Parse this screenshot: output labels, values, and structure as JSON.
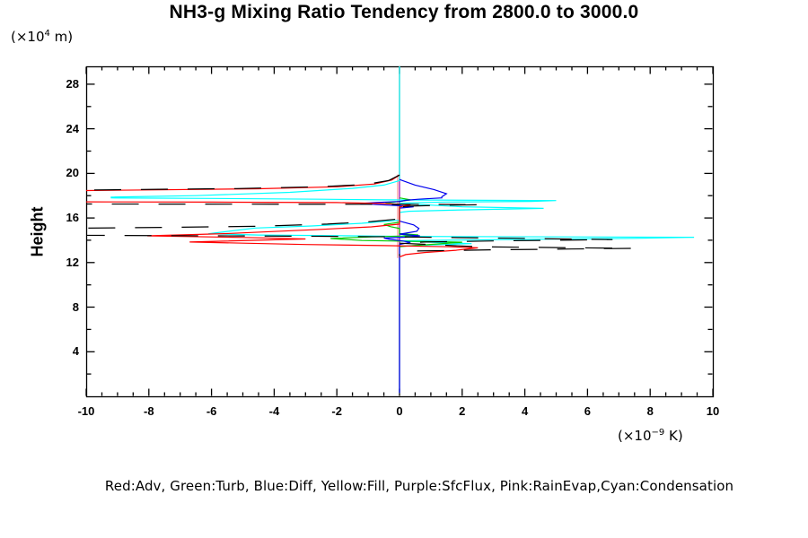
{
  "title": "NH3-g Mixing Ratio Tendency from 2800.0 to 3000.0",
  "y_axis_label": "Height",
  "y_unit": {
    "prefix": "(×10",
    "exp": "4",
    "suffix": " m)"
  },
  "x_unit": {
    "prefix": "(×10",
    "exp": "−9",
    "suffix": " K)"
  },
  "legend_text": "Red:Adv, Green:Turb, Blue:Diff, Yellow:Fill, Purple:SfcFlux, Pink:RainEvap,Cyan:Condensation",
  "colors": {
    "red": "#ff0000",
    "green": "#00cc00",
    "blue": "#0000ee",
    "yellow": "#ffff00",
    "purple": "#9900cc",
    "pink": "#ff9999",
    "cyan": "#00ffff",
    "black": "#000000",
    "axis": "#000000",
    "background": "#ffffff"
  },
  "chart_data": {
    "type": "line",
    "title": "NH3-g Mixing Ratio Tendency from 2800.0 to 3000.0",
    "xlabel": "(×10⁻⁹ K)",
    "ylabel": "Height (×10⁴ m)",
    "xlim": [
      -10,
      10
    ],
    "ylim": [
      0,
      29.6
    ],
    "grid": false,
    "legend_position": "bottom-text-line",
    "x_tick_labels": [
      "-10",
      "-8",
      "-6",
      "-4",
      "-2",
      "0",
      "2",
      "4",
      "6",
      "8",
      "10"
    ],
    "x_tick_values": [
      -10,
      -8,
      -6,
      -4,
      -2,
      0,
      2,
      4,
      6,
      8,
      10
    ],
    "x_minor_step": 0.5,
    "y_tick_labels": [
      "28",
      "24",
      "20",
      "16",
      "12",
      "8",
      "4"
    ],
    "y_tick_values": [
      28,
      24,
      20,
      16,
      12,
      8,
      4
    ],
    "y_minor_step": 2,
    "series": [
      {
        "name": "Fill",
        "color_key": "yellow",
        "dash": "",
        "points": [
          [
            0,
            29.6
          ],
          [
            0,
            0.3
          ]
        ]
      },
      {
        "name": "SfcFlux",
        "color_key": "purple",
        "dash": "",
        "points": [
          [
            0,
            29.6
          ],
          [
            0,
            0.3
          ]
        ]
      },
      {
        "name": "RainEvap",
        "color_key": "pink",
        "dash": "",
        "points": [
          [
            -0.06,
            19.9
          ],
          [
            -0.06,
            12.4
          ]
        ]
      },
      {
        "name": "Condensation",
        "color_key": "cyan",
        "dash": "",
        "points": [
          [
            0,
            29.6
          ],
          [
            0,
            19.35
          ],
          [
            -0.5,
            18.95
          ],
          [
            -1.5,
            18.65
          ],
          [
            -3.5,
            18.3
          ],
          [
            -6.5,
            18.0
          ],
          [
            -9.2,
            17.87
          ],
          [
            -9.2,
            17.8
          ],
          [
            -6,
            17.75
          ],
          [
            -2.5,
            17.68
          ],
          [
            -0.5,
            17.62
          ],
          [
            5.0,
            17.56
          ],
          [
            4.2,
            17.49
          ],
          [
            1.5,
            17.43
          ],
          [
            0.3,
            17.36
          ],
          [
            0,
            17.3
          ],
          [
            2.0,
            17.0
          ],
          [
            4.6,
            16.86
          ],
          [
            2.0,
            16.72
          ],
          [
            0.3,
            16.6
          ],
          [
            0,
            16.5
          ],
          [
            0,
            15.8
          ],
          [
            -1.2,
            15.52
          ],
          [
            -2.8,
            15.28
          ],
          [
            -4.6,
            15.1
          ],
          [
            -6.1,
            14.58
          ],
          [
            -4.5,
            14.47
          ],
          [
            -1.5,
            14.4
          ],
          [
            0,
            14.35
          ],
          [
            9.4,
            14.27
          ],
          [
            7.5,
            14.17
          ],
          [
            3.5,
            14.07
          ],
          [
            0.8,
            13.99
          ],
          [
            0,
            13.94
          ],
          [
            1.2,
            13.8
          ],
          [
            2.3,
            13.7
          ],
          [
            1.0,
            13.58
          ],
          [
            0,
            13.48
          ],
          [
            0,
            0.3
          ]
        ]
      },
      {
        "name": "Turb",
        "color_key": "green",
        "dash": "",
        "points": [
          [
            0,
            17.8
          ],
          [
            0.35,
            17.62
          ],
          [
            0,
            17.48
          ],
          [
            -0.45,
            17.32
          ],
          [
            0,
            17.16
          ],
          [
            0,
            15.62
          ],
          [
            -0.5,
            15.42
          ],
          [
            -0.28,
            15.22
          ],
          [
            0,
            15.06
          ],
          [
            0,
            14.6
          ],
          [
            0.6,
            14.48
          ],
          [
            0.1,
            14.38
          ],
          [
            -0.9,
            14.3
          ],
          [
            -2.2,
            14.16
          ],
          [
            -1.2,
            13.98
          ],
          [
            0.5,
            13.9
          ],
          [
            2.0,
            13.83
          ],
          [
            1.3,
            13.68
          ],
          [
            0.5,
            13.54
          ],
          [
            0,
            13.42
          ]
        ]
      },
      {
        "name": "Diff",
        "color_key": "blue",
        "dash": "",
        "points": [
          [
            0,
            19.45
          ],
          [
            0.5,
            18.95
          ],
          [
            1.1,
            18.55
          ],
          [
            1.5,
            18.18
          ],
          [
            1.35,
            17.9
          ],
          [
            1.35,
            17.8
          ],
          [
            0.6,
            17.68
          ],
          [
            0.2,
            17.58
          ],
          [
            0,
            17.48
          ],
          [
            -0.75,
            17.38
          ],
          [
            -1.25,
            17.3
          ],
          [
            -0.7,
            17.2
          ],
          [
            0,
            17.1
          ],
          [
            0.45,
            17.0
          ],
          [
            0,
            16.88
          ],
          [
            0,
            15.72
          ],
          [
            0.45,
            15.38
          ],
          [
            0.62,
            15.06
          ],
          [
            0.55,
            14.8
          ],
          [
            0.2,
            14.64
          ],
          [
            0,
            14.54
          ],
          [
            0.65,
            14.4
          ],
          [
            0.2,
            14.28
          ],
          [
            -0.5,
            14.2
          ],
          [
            -0.3,
            14.08
          ],
          [
            0,
            13.98
          ],
          [
            0.35,
            13.82
          ],
          [
            0,
            13.62
          ],
          [
            0,
            0.3
          ]
        ]
      },
      {
        "name": "Adv",
        "color_key": "red",
        "dash": "",
        "points": [
          [
            0,
            19.85
          ],
          [
            -0.25,
            19.4
          ],
          [
            -0.8,
            19.05
          ],
          [
            -2,
            18.8
          ],
          [
            -4.5,
            18.62
          ],
          [
            -8,
            18.52
          ],
          [
            -10.3,
            18.45
          ],
          [
            -10.3,
            17.45
          ],
          [
            -6,
            17.42
          ],
          [
            -2,
            17.38
          ],
          [
            -0.6,
            17.3
          ],
          [
            0.35,
            17.18
          ],
          [
            0.15,
            17.08
          ],
          [
            0,
            16.98
          ],
          [
            0,
            15.45
          ],
          [
            -0.9,
            15.2
          ],
          [
            -2.5,
            14.98
          ],
          [
            -5.5,
            14.6
          ],
          [
            -8.05,
            14.4
          ],
          [
            -5,
            14.25
          ],
          [
            -3,
            14.12
          ],
          [
            -6.7,
            13.84
          ],
          [
            -3,
            13.62
          ],
          [
            -0.5,
            13.52
          ],
          [
            1.6,
            13.42
          ],
          [
            2.5,
            13.32
          ],
          [
            1.8,
            13.1
          ],
          [
            0.8,
            12.9
          ],
          [
            0.2,
            12.72
          ],
          [
            0,
            12.5
          ]
        ]
      },
      {
        "name": "black",
        "color_key": "black",
        "dash": "30 22",
        "points": [
          [
            0,
            19.85
          ],
          [
            -0.35,
            19.35
          ],
          [
            -1.1,
            19.0
          ],
          [
            -2.6,
            18.8
          ],
          [
            -5.2,
            18.64
          ],
          [
            -10.3,
            18.5
          ],
          [
            -10.3,
            17.25
          ],
          [
            -5,
            17.24
          ],
          [
            -1,
            17.23
          ],
          [
            1.3,
            17.21
          ],
          [
            2.6,
            17.19
          ],
          [
            1.2,
            17.13
          ],
          [
            0.3,
            17.06
          ],
          [
            0,
            16.98
          ],
          [
            0,
            15.92
          ],
          [
            -0.9,
            15.68
          ],
          [
            -2.3,
            15.45
          ],
          [
            -4.6,
            15.25
          ],
          [
            -7.5,
            15.15
          ],
          [
            -10.3,
            15.08
          ],
          [
            -10.3,
            14.45
          ],
          [
            -6,
            14.4
          ],
          [
            -2.5,
            14.36
          ],
          [
            0,
            14.3
          ],
          [
            3.5,
            14.18
          ],
          [
            6.8,
            14.06
          ],
          [
            3,
            13.94
          ],
          [
            0.8,
            13.84
          ],
          [
            0,
            13.74
          ],
          [
            2.5,
            13.42
          ],
          [
            7.4,
            13.27
          ],
          [
            3,
            13.14
          ],
          [
            0.5,
            13.04
          ],
          [
            0,
            12.94
          ],
          [
            0,
            12.6
          ]
        ]
      }
    ]
  }
}
